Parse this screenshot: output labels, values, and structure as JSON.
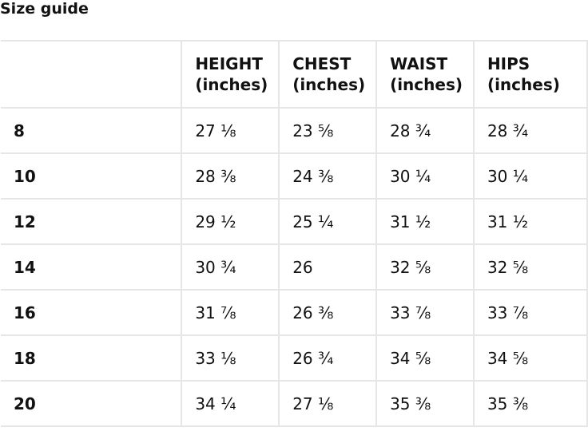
{
  "title": "Size guide",
  "table": {
    "headers": [
      "",
      "HEIGHT\n(inches)",
      "CHEST\n(inches)",
      "WAIST\n(inches)",
      "HIPS\n(inches)"
    ],
    "header_lines": [
      [
        "",
        ""
      ],
      [
        "HEIGHT",
        "(inches)"
      ],
      [
        "CHEST",
        "(inches)"
      ],
      [
        "WAIST",
        "(inches)"
      ],
      [
        "HIPS",
        "(inches)"
      ]
    ],
    "rows": [
      [
        "8",
        "27 ⅛",
        "23 ⅝",
        "28 ¾",
        "28 ¾"
      ],
      [
        "10",
        "28 ⅜",
        "24 ⅜",
        "30 ¼",
        "30 ¼"
      ],
      [
        "12",
        "29 ½",
        "25 ¼",
        "31 ½",
        "31 ½"
      ],
      [
        "14",
        "30 ¾",
        "26",
        "32 ⅝",
        "32 ⅝"
      ],
      [
        "16",
        "31 ⅞",
        "26 ⅜",
        "33 ⅞",
        "33 ⅞"
      ],
      [
        "18",
        "33 ⅛",
        "26 ¾",
        "34 ⅝",
        "34 ⅝"
      ],
      [
        "20",
        "34 ¼",
        "27 ⅛",
        "35 ⅜",
        "35 ⅜"
      ]
    ]
  }
}
